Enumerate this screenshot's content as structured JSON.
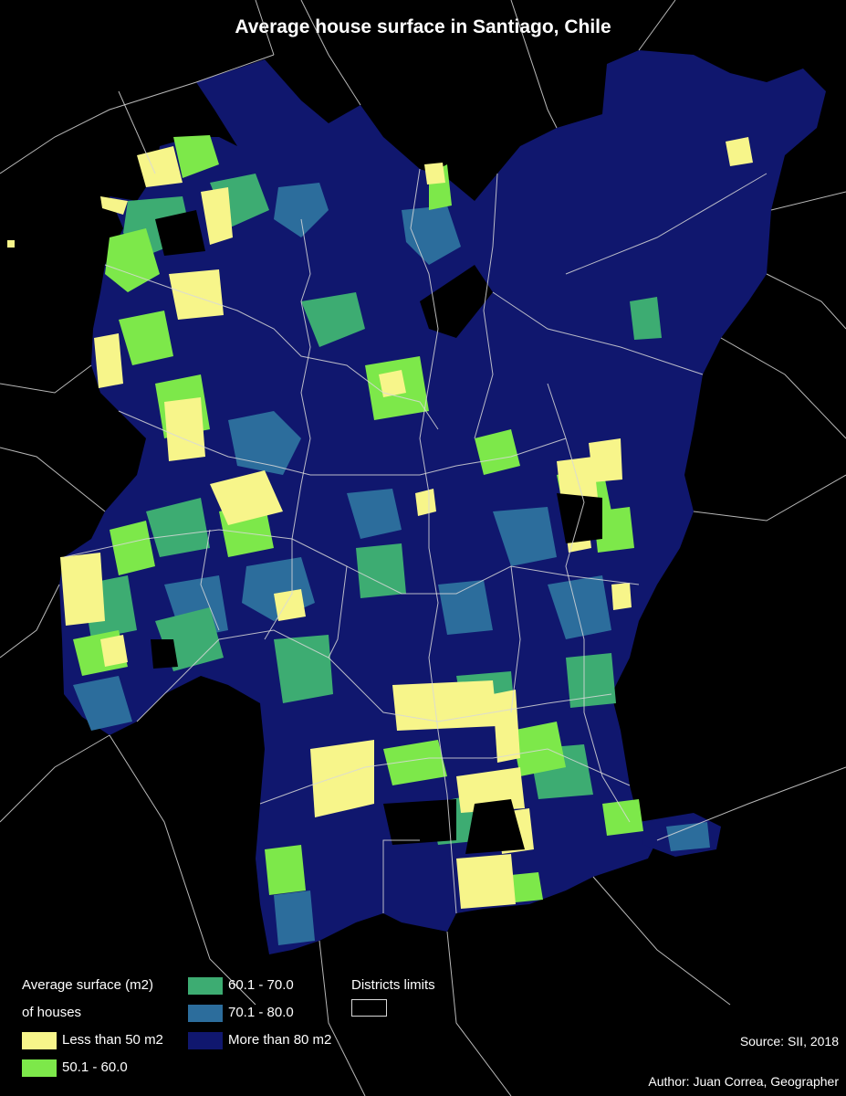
{
  "title": "Average house surface in Santiago, Chile",
  "legend": {
    "heading_line1": "Average surface (m2)",
    "heading_line2": "of houses",
    "districts_label": "Districts limits",
    "classes": [
      {
        "label": "Less than 50 m2",
        "color": "#f7f58a"
      },
      {
        "label": "50.1 - 60.0",
        "color": "#7de84a"
      },
      {
        "label": "60.1 - 70.0",
        "color": "#3dac72"
      },
      {
        "label": "70.1 - 80.0",
        "color": "#2c6d9c"
      },
      {
        "label": "More than 80 m2",
        "color": "#10176e"
      }
    ],
    "district_line_color": "#d8d8d8"
  },
  "credits": {
    "source": "Source: SII, 2018",
    "author": "Author: Juan Correa, Geographer"
  }
}
